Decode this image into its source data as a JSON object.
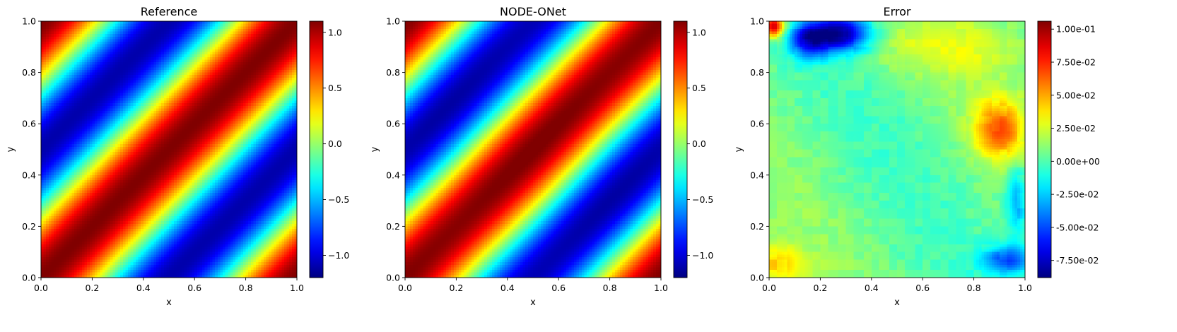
{
  "colormap": "jet",
  "chart_data": [
    {
      "type": "heatmap",
      "title": "Reference",
      "xlabel": "x",
      "ylabel": "y",
      "xlim": [
        0,
        1
      ],
      "ylim": [
        0,
        1
      ],
      "xticks": [
        "0.0",
        "0.2",
        "0.4",
        "0.6",
        "0.8",
        "1.0"
      ],
      "yticks": [
        "0.0",
        "0.2",
        "0.4",
        "0.6",
        "0.8",
        "1.0"
      ],
      "field": "sin(2*pi*(x - y) + pi/2) * 1.1",
      "colorbar": {
        "range": [
          -1.2,
          1.1
        ],
        "ticks": [
          1.0,
          0.5,
          0.0,
          -0.5,
          -1.0
        ],
        "tick_labels": [
          "1.0",
          "0.5",
          "0.0",
          "−0.5",
          "−1.0"
        ]
      }
    },
    {
      "type": "heatmap",
      "title": "NODE-ONet",
      "xlabel": "x",
      "ylabel": "y",
      "xlim": [
        0,
        1
      ],
      "ylim": [
        0,
        1
      ],
      "xticks": [
        "0.0",
        "0.2",
        "0.4",
        "0.6",
        "0.8",
        "1.0"
      ],
      "yticks": [
        "0.0",
        "0.2",
        "0.4",
        "0.6",
        "0.8",
        "1.0"
      ],
      "field": "sin(2*pi*(x - y) + pi/2) * 1.1",
      "colorbar": {
        "range": [
          -1.2,
          1.1
        ],
        "ticks": [
          1.0,
          0.5,
          0.0,
          -0.5,
          -1.0
        ],
        "tick_labels": [
          "1.0",
          "0.5",
          "0.0",
          "−0.5",
          "−1.0"
        ]
      }
    },
    {
      "type": "heatmap",
      "title": "Error",
      "xlabel": "x",
      "ylabel": "y",
      "xlim": [
        0,
        1
      ],
      "ylim": [
        0,
        1
      ],
      "xticks": [
        "0.0",
        "0.2",
        "0.4",
        "0.6",
        "0.8",
        "1.0"
      ],
      "yticks": [
        "0.0",
        "0.2",
        "0.4",
        "0.6",
        "0.8",
        "1.0"
      ],
      "field": "error field: mostly near 0 (cyan/green), negative patch near top-left (x 0.15-0.35, y 0.85-1.0, about -0.08), positive patch near right (x 0.85-1.0, y 0.5-0.7, about +0.06), positive corners top-left and bottom-left (about +0.08 and +0.04)",
      "colorbar": {
        "range": [
          -0.088,
          0.106
        ],
        "ticks": [
          0.1,
          0.075,
          0.05,
          0.025,
          0.0,
          -0.025,
          -0.05,
          -0.075
        ],
        "tick_labels": [
          "1.00e-01",
          "7.50e-02",
          "5.00e-02",
          "2.50e-02",
          "0.00e+00",
          "-2.50e-02",
          "-5.00e-02",
          "-7.50e-02"
        ]
      }
    }
  ]
}
